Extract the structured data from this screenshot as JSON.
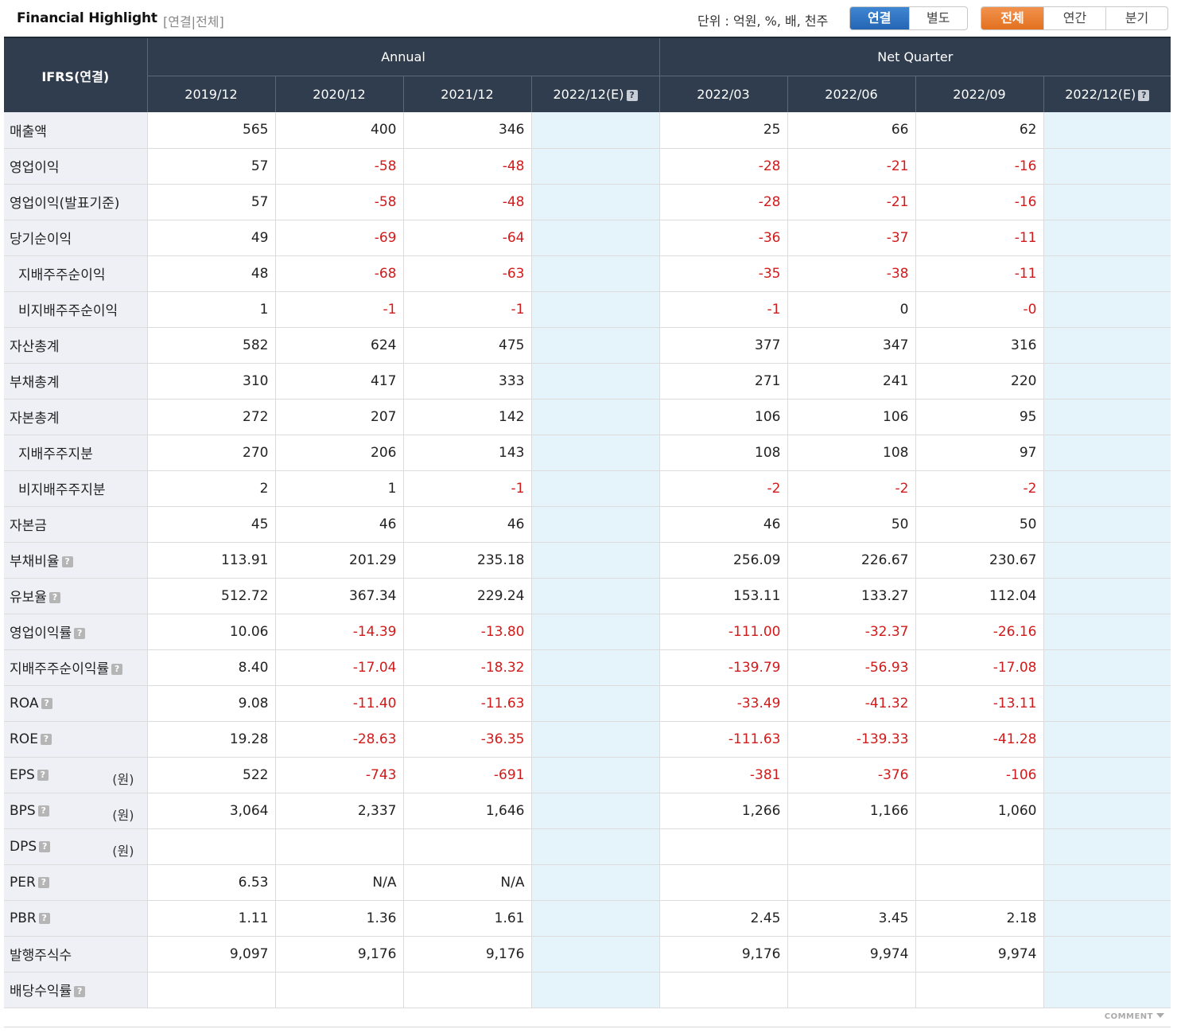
{
  "header": {
    "title": "Financial Highlight",
    "subtitle": "[연결|전체]",
    "unit": "단위 : 억원, %, 배, 천주",
    "toggle_consolidation": [
      "연결",
      "별도"
    ],
    "toggle_period": [
      "전체",
      "연간",
      "분기"
    ]
  },
  "table": {
    "corner": "IFRS(연결)",
    "groups": [
      "Annual",
      "Net Quarter"
    ],
    "columns": [
      "2019/12",
      "2020/12",
      "2021/12",
      "2022/12(E)",
      "2022/03",
      "2022/06",
      "2022/09",
      "2022/12(E)"
    ],
    "rows": [
      {
        "label": "매출액",
        "values": [
          "565",
          "400",
          "346",
          "",
          "25",
          "66",
          "62",
          ""
        ]
      },
      {
        "label": "영업이익",
        "values": [
          "57",
          "-58",
          "-48",
          "",
          "-28",
          "-21",
          "-16",
          ""
        ]
      },
      {
        "label": "영업이익(발표기준)",
        "values": [
          "57",
          "-58",
          "-48",
          "",
          "-28",
          "-21",
          "-16",
          ""
        ]
      },
      {
        "label": "당기순이익",
        "values": [
          "49",
          "-69",
          "-64",
          "",
          "-36",
          "-37",
          "-11",
          ""
        ]
      },
      {
        "label": "지배주주순이익",
        "values": [
          "48",
          "-68",
          "-63",
          "",
          "-35",
          "-38",
          "-11",
          ""
        ]
      },
      {
        "label": "비지배주주순이익",
        "values": [
          "1",
          "-1",
          "-1",
          "",
          "-1",
          "0",
          "-0",
          ""
        ]
      },
      {
        "label": "자산총계",
        "values": [
          "582",
          "624",
          "475",
          "",
          "377",
          "347",
          "316",
          ""
        ]
      },
      {
        "label": "부채총계",
        "values": [
          "310",
          "417",
          "333",
          "",
          "271",
          "241",
          "220",
          ""
        ]
      },
      {
        "label": "자본총계",
        "values": [
          "272",
          "207",
          "142",
          "",
          "106",
          "106",
          "95",
          ""
        ]
      },
      {
        "label": "지배주주지분",
        "values": [
          "270",
          "206",
          "143",
          "",
          "108",
          "108",
          "97",
          ""
        ]
      },
      {
        "label": "비지배주주지분",
        "values": [
          "2",
          "1",
          "-1",
          "",
          "-2",
          "-2",
          "-2",
          ""
        ]
      },
      {
        "label": "자본금",
        "values": [
          "45",
          "46",
          "46",
          "",
          "46",
          "50",
          "50",
          ""
        ]
      },
      {
        "label": "부채비율",
        "values": [
          "113.91",
          "201.29",
          "235.18",
          "",
          "256.09",
          "226.67",
          "230.67",
          ""
        ]
      },
      {
        "label": "유보율",
        "values": [
          "512.72",
          "367.34",
          "229.24",
          "",
          "153.11",
          "133.27",
          "112.04",
          ""
        ]
      },
      {
        "label": "영업이익률",
        "values": [
          "10.06",
          "-14.39",
          "-13.80",
          "",
          "-111.00",
          "-32.37",
          "-26.16",
          ""
        ]
      },
      {
        "label": "지배주주순이익률",
        "values": [
          "8.40",
          "-17.04",
          "-18.32",
          "",
          "-139.79",
          "-56.93",
          "-17.08",
          ""
        ]
      },
      {
        "label": "ROA",
        "values": [
          "9.08",
          "-11.40",
          "-11.63",
          "",
          "-33.49",
          "-41.32",
          "-13.11",
          ""
        ]
      },
      {
        "label": "ROE",
        "values": [
          "19.28",
          "-28.63",
          "-36.35",
          "",
          "-111.63",
          "-139.33",
          "-41.28",
          ""
        ]
      },
      {
        "label": "EPS",
        "unit": "(원)",
        "values": [
          "522",
          "-743",
          "-691",
          "",
          "-381",
          "-376",
          "-106",
          ""
        ]
      },
      {
        "label": "BPS",
        "unit": "(원)",
        "values": [
          "3,064",
          "2,337",
          "1,646",
          "",
          "1,266",
          "1,166",
          "1,060",
          ""
        ]
      },
      {
        "label": "DPS",
        "unit": "(원)",
        "values": [
          "",
          "",
          "",
          "",
          "",
          "",
          "",
          ""
        ]
      },
      {
        "label": "PER",
        "values": [
          "6.53",
          "N/A",
          "N/A",
          "",
          "",
          "",
          "",
          ""
        ]
      },
      {
        "label": "PBR",
        "values": [
          "1.11",
          "1.36",
          "1.61",
          "",
          "2.45",
          "3.45",
          "2.18",
          ""
        ]
      },
      {
        "label": "발행주식수",
        "values": [
          "9,097",
          "9,176",
          "9,176",
          "",
          "9,176",
          "9,974",
          "9,974",
          ""
        ]
      },
      {
        "label": "배당수익률",
        "values": [
          "",
          "",
          "",
          "",
          "",
          "",
          "",
          ""
        ]
      }
    ]
  },
  "footer": {
    "comment_label": "COMMENT"
  },
  "colors": {
    "header_bg": "#2f3d4e",
    "label_bg": "#eef0f5",
    "estimate_bg": "#e5f3fa",
    "negative": "#d21a1a",
    "active_blue": "#2e72c2",
    "active_orange": "#e8772a"
  }
}
